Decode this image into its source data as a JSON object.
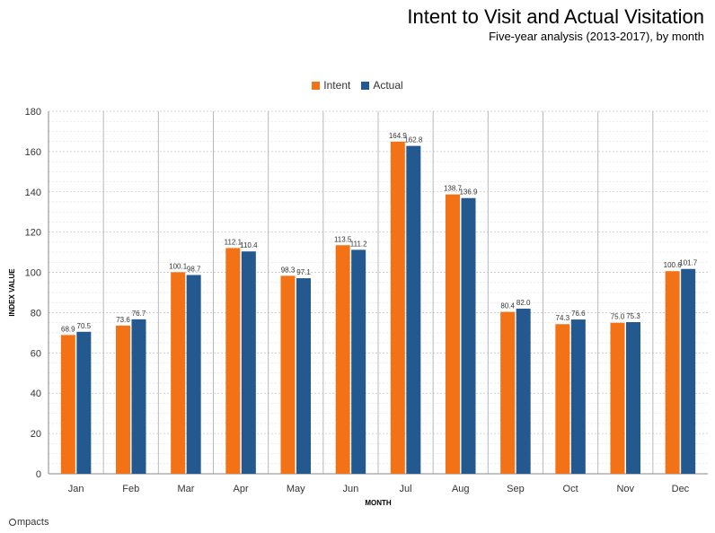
{
  "header": {
    "title": "Intent to Visit and Actual Visitation",
    "subtitle": "Five-year analysis (2013-2017), by month"
  },
  "brand": {
    "logo_text": "mpacts"
  },
  "colors": {
    "intent": "#f47216",
    "actual": "#24598f"
  },
  "chart_data": {
    "type": "bar",
    "title": "Intent to Visit and Actual Visitation",
    "subtitle": "Five-year analysis (2013-2017), by month",
    "xlabel": "MONTH",
    "ylabel": "INDEX VALUE",
    "ylim": [
      0,
      180
    ],
    "yticks": [
      0,
      20,
      40,
      60,
      80,
      100,
      120,
      140,
      160,
      180
    ],
    "grid": true,
    "legend_position": "top-center",
    "categories": [
      "Jan",
      "Feb",
      "Mar",
      "Apr",
      "May",
      "Jun",
      "Jul",
      "Aug",
      "Sep",
      "Oct",
      "Nov",
      "Dec"
    ],
    "series": [
      {
        "name": "Intent",
        "color": "#f47216",
        "values": [
          68.9,
          73.6,
          100.1,
          112.1,
          98.3,
          113.5,
          164.9,
          138.7,
          80.4,
          74.3,
          75.0,
          100.6
        ]
      },
      {
        "name": "Actual",
        "color": "#24598f",
        "values": [
          70.5,
          76.7,
          98.7,
          110.4,
          97.1,
          111.2,
          162.8,
          136.9,
          82.0,
          76.6,
          75.3,
          101.7
        ]
      }
    ]
  }
}
